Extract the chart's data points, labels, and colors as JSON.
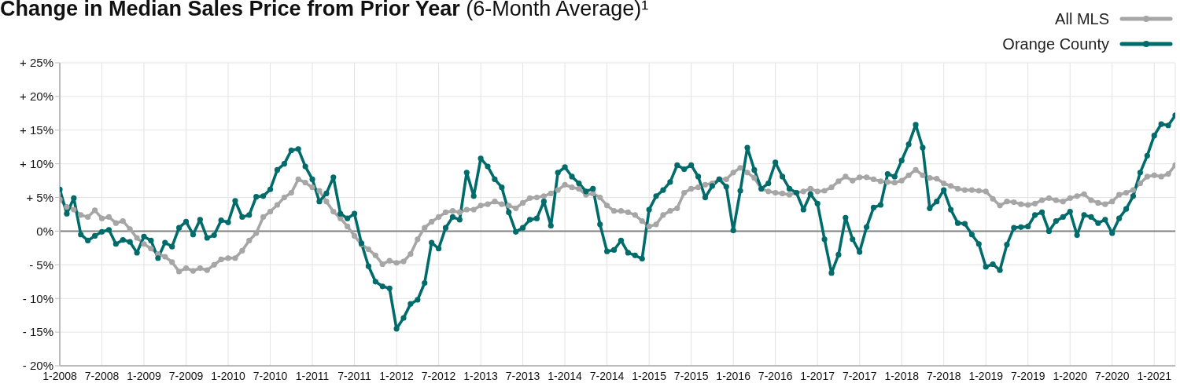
{
  "chart_data": {
    "type": "line",
    "title": "Change in Median Sales Price from Prior Year",
    "subtitle": "(6-Month Average)¹",
    "categories": [
      "1-2008",
      null,
      null,
      null,
      null,
      null,
      "7-2008",
      null,
      null,
      null,
      null,
      null,
      "1-2009",
      null,
      null,
      null,
      null,
      null,
      "7-2009",
      null,
      null,
      null,
      null,
      null,
      "1-2010",
      null,
      null,
      null,
      null,
      null,
      "7-2010",
      null,
      null,
      null,
      null,
      null,
      "1-2011",
      null,
      null,
      null,
      null,
      null,
      "7-2011",
      null,
      null,
      null,
      null,
      null,
      "1-2012",
      null,
      null,
      null,
      null,
      null,
      "7-2012",
      null,
      null,
      null,
      null,
      null,
      "1-2013",
      null,
      null,
      null,
      null,
      null,
      "7-2013",
      null,
      null,
      null,
      null,
      null,
      "1-2014",
      null,
      null,
      null,
      null,
      null,
      "7-2014",
      null,
      null,
      null,
      null,
      null,
      "1-2015",
      null,
      null,
      null,
      null,
      null,
      "7-2015",
      null,
      null,
      null,
      null,
      null,
      "1-2016",
      null,
      null,
      null,
      null,
      null,
      "7-2016",
      null,
      null,
      null,
      null,
      null,
      "1-2017",
      null,
      null,
      null,
      null,
      null,
      "7-2017",
      null,
      null,
      null,
      null,
      null,
      "1-2018",
      null,
      null,
      null,
      null,
      null,
      "7-2018",
      null,
      null,
      null,
      null,
      null,
      "1-2019",
      null,
      null,
      null,
      null,
      null,
      "7-2019",
      null,
      null,
      null,
      null,
      null,
      "1-2020",
      null,
      null,
      null,
      null,
      null,
      "7-2020",
      null,
      null,
      null,
      null,
      null,
      "1-2021",
      null,
      null,
      null
    ],
    "series": [
      {
        "name": "All MLS",
        "color": "#a6a6a6",
        "values": [
          4.7,
          3.6,
          3.2,
          2.4,
          2.1,
          3.1,
          1.9,
          2.1,
          1.2,
          1.5,
          0.3,
          -1.0,
          -1.9,
          -2.6,
          -3.4,
          -3.8,
          -4.6,
          -6.0,
          -5.5,
          -5.9,
          -5.5,
          -5.8,
          -5.0,
          -4.2,
          -4.0,
          -4.0,
          -2.9,
          -1.4,
          -0.3,
          2.1,
          2.9,
          3.9,
          5.0,
          5.7,
          7.7,
          7.2,
          6.5,
          6.0,
          4.4,
          2.9,
          1.9,
          0.7,
          -0.7,
          -2.0,
          -2.7,
          -3.6,
          -4.9,
          -4.4,
          -4.7,
          -4.5,
          -3.4,
          -1.2,
          0.5,
          1.4,
          2.1,
          2.8,
          3.0,
          2.8,
          3.2,
          3.2,
          3.8,
          4.0,
          4.4,
          4.0,
          3.8,
          3.4,
          4.2,
          4.9,
          5.0,
          5.2,
          5.6,
          6.1,
          6.9,
          6.5,
          6.3,
          5.4,
          5.6,
          5.0,
          3.8,
          3.0,
          3.0,
          2.8,
          2.4,
          1.5,
          0.7,
          1.0,
          2.4,
          3.0,
          3.4,
          5.7,
          6.3,
          6.5,
          6.9,
          7.1,
          7.7,
          7.7,
          8.7,
          9.4,
          8.7,
          7.9,
          6.3,
          5.9,
          5.7,
          5.6,
          5.4,
          5.7,
          5.9,
          6.3,
          5.9,
          6.0,
          6.5,
          7.4,
          8.1,
          7.5,
          8.0,
          8.0,
          7.7,
          7.4,
          7.3,
          7.2,
          7.5,
          8.3,
          9.1,
          8.3,
          7.9,
          7.8,
          7.1,
          6.7,
          6.3,
          6.1,
          6.1,
          6.0,
          5.9,
          4.8,
          3.8,
          4.4,
          4.3,
          4.0,
          3.9,
          4.1,
          4.6,
          4.9,
          4.6,
          4.4,
          4.9,
          5.2,
          5.5,
          4.6,
          4.2,
          4.0,
          4.4,
          5.4,
          5.7,
          6.1,
          7.1,
          8.1,
          8.3,
          8.1,
          8.5,
          9.8
        ]
      },
      {
        "name": "Orange County",
        "color": "#006b6b",
        "values": [
          6.2,
          2.6,
          4.9,
          -0.5,
          -1.4,
          -0.7,
          -0.1,
          0.2,
          -1.9,
          -1.3,
          -1.6,
          -3.2,
          -0.8,
          -1.4,
          -4.0,
          -1.7,
          -2.3,
          0.5,
          1.4,
          -0.5,
          1.7,
          -1.0,
          -0.6,
          1.6,
          1.3,
          4.5,
          2.1,
          2.4,
          5.1,
          5.2,
          6.2,
          9.1,
          10.0,
          12.0,
          12.2,
          9.6,
          7.7,
          4.4,
          5.6,
          8.0,
          2.6,
          1.9,
          2.6,
          -1.8,
          -5.2,
          -7.5,
          -8.2,
          -8.5,
          -14.5,
          -12.9,
          -10.8,
          -10.2,
          -7.7,
          -1.7,
          -2.6,
          0.5,
          2.1,
          1.7,
          8.7,
          5.2,
          10.8,
          9.6,
          7.7,
          6.5,
          2.8,
          -0.1,
          0.5,
          1.7,
          1.9,
          4.4,
          0.8,
          8.7,
          9.5,
          8.1,
          7.1,
          5.9,
          6.3,
          1.0,
          -3.0,
          -2.8,
          -1.4,
          -3.2,
          -3.6,
          -4.1,
          3.2,
          5.2,
          6.1,
          7.3,
          9.8,
          9.2,
          9.8,
          8.1,
          5.0,
          6.7,
          7.7,
          6.6,
          0.1,
          6.0,
          12.4,
          9.1,
          6.3,
          7.1,
          10.2,
          8.1,
          6.3,
          5.7,
          3.2,
          5.5,
          4.1,
          -1.2,
          -6.2,
          -3.5,
          2.0,
          -1.2,
          -3.1,
          0.6,
          3.5,
          3.9,
          8.5,
          8.1,
          10.5,
          12.9,
          15.8,
          12.4,
          3.4,
          4.4,
          6.1,
          3.2,
          1.2,
          1.1,
          -0.5,
          -1.9,
          -5.3,
          -4.9,
          -5.8,
          -2.0,
          0.5,
          0.6,
          0.7,
          2.4,
          2.8,
          0.0,
          1.5,
          2.1,
          2.9,
          -0.6,
          2.4,
          2.1,
          1.2,
          1.7,
          -0.3,
          1.9,
          3.3,
          5.2,
          8.7,
          11.2,
          14.2,
          15.9,
          15.7,
          17.2
        ]
      }
    ],
    "ylim": [
      -20,
      25
    ],
    "yticks": [
      {
        "value": -20,
        "label": "- 20%"
      },
      {
        "value": -15,
        "label": "- 15%"
      },
      {
        "value": -10,
        "label": "- 10%"
      },
      {
        "value": -5,
        "label": "- 5%"
      },
      {
        "value": 0,
        "label": "0%"
      },
      {
        "value": 5,
        "label": "+ 5%"
      },
      {
        "value": 10,
        "label": "+ 10%"
      },
      {
        "value": 15,
        "label": "+ 15%"
      },
      {
        "value": 20,
        "label": "+ 20%"
      },
      {
        "value": 25,
        "label": "+ 25%"
      }
    ],
    "ref_lines": [
      {
        "axis": "y",
        "value": 0,
        "color": "#808080"
      }
    ],
    "grid": true,
    "legend": "top right",
    "marker": "circle",
    "line_style": "solid"
  }
}
